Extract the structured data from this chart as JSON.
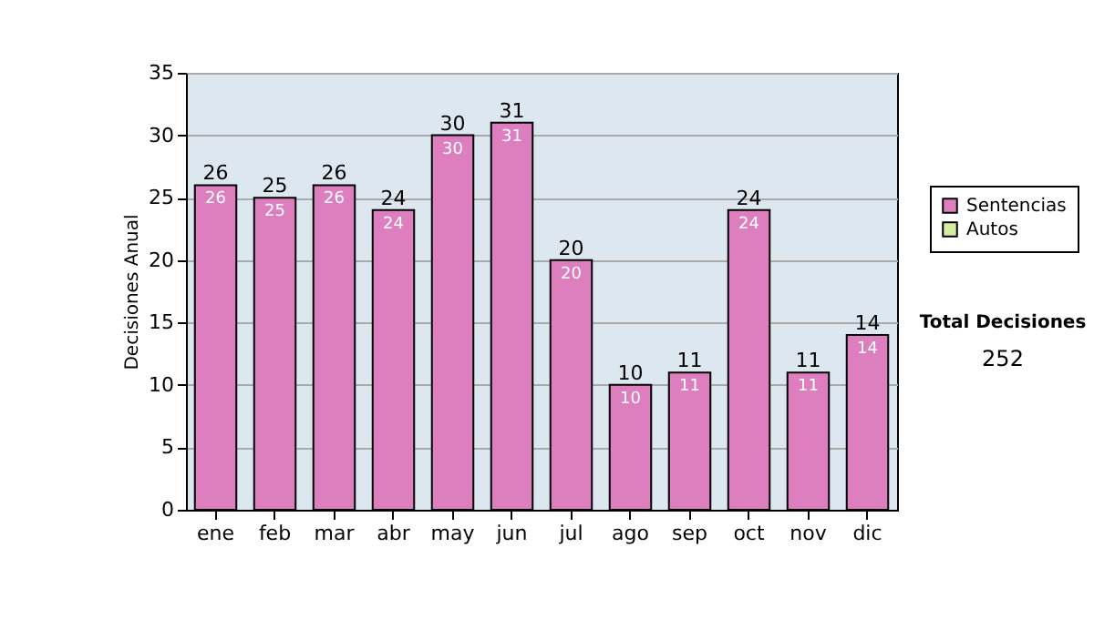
{
  "chart_data": {
    "type": "bar",
    "stacked": true,
    "ylabel": "Decisiones Anual",
    "categories": [
      "ene",
      "feb",
      "mar",
      "abr",
      "may",
      "jun",
      "jul",
      "ago",
      "sep",
      "oct",
      "nov",
      "dic"
    ],
    "series": [
      {
        "name": "Sentencias",
        "color": "#dd7fbf",
        "values": [
          26,
          25,
          26,
          24,
          30,
          31,
          20,
          10,
          11,
          24,
          11,
          14
        ],
        "value_labels": [
          "26",
          "25",
          "26",
          "24",
          "30",
          "31",
          "20",
          "10",
          "11",
          "24",
          "11",
          "14"
        ]
      },
      {
        "name": "Autos",
        "color": "#d4eda0",
        "values": [
          0,
          0,
          0,
          0,
          0,
          0,
          0,
          0,
          0,
          0,
          0,
          0
        ]
      }
    ],
    "totals": [
      "26",
      "25",
      "26",
      "24",
      "30",
      "31",
      "20",
      "10",
      "11",
      "24",
      "11",
      "14"
    ],
    "ylim": [
      0,
      35
    ],
    "yticks": [
      0,
      5,
      10,
      15,
      20,
      25,
      30,
      35
    ],
    "grid": "y",
    "legend": "right",
    "annotations": [
      "Total Decisiones",
      "252"
    ]
  }
}
